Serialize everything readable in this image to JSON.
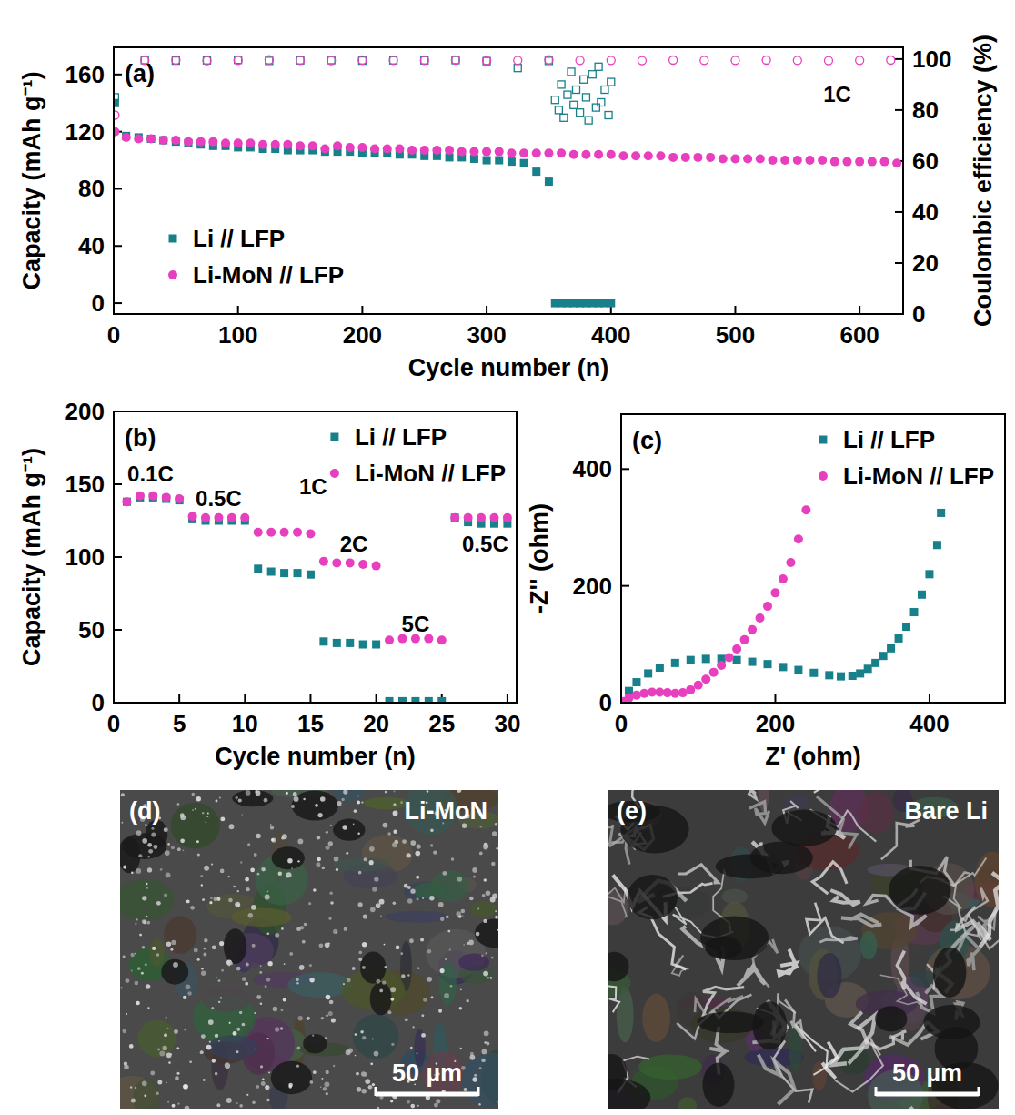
{
  "chart_data": [
    {
      "type": "scatter",
      "panel": "(a)",
      "x_label": "Cycle number (n)",
      "y_label": "Capacity (mAh g⁻¹)",
      "y2_label": "Coulombic efficiency (%)",
      "xlim": [
        0,
        635
      ],
      "xticks": [
        0,
        100,
        200,
        300,
        400,
        500,
        600
      ],
      "ylim": [
        -7.6,
        179
      ],
      "yticks": [
        0,
        40,
        80,
        120,
        160
      ],
      "y2lim": [
        0,
        104.6
      ],
      "y2ticks": [
        0,
        20,
        40,
        60,
        80,
        100
      ],
      "legend": "lower left",
      "annotations": [
        {
          "text": "1C",
          "x": 582,
          "y": 145
        }
      ],
      "series": [
        {
          "name": "Li // LFP",
          "color": "#17808a",
          "marker": "square",
          "x": [
            1,
            10,
            20,
            30,
            40,
            50,
            60,
            70,
            80,
            90,
            100,
            110,
            120,
            130,
            140,
            150,
            160,
            170,
            180,
            190,
            200,
            210,
            220,
            230,
            240,
            250,
            260,
            270,
            280,
            290,
            300,
            310,
            320,
            330,
            340,
            350,
            355,
            360,
            365,
            370,
            375,
            380,
            385,
            390,
            395,
            400
          ],
          "values": [
            140,
            117,
            116,
            115,
            114,
            113,
            112,
            111,
            110,
            110,
            109,
            109,
            108,
            108,
            107,
            107,
            107,
            106,
            106,
            106,
            105,
            105,
            105,
            104,
            104,
            103,
            103,
            102,
            102,
            101,
            100,
            100,
            99,
            98,
            92,
            85,
            0,
            0,
            0,
            0,
            0,
            0,
            0,
            0,
            0,
            0
          ]
        },
        {
          "name": "Li-MoN // LFP",
          "color": "#e83fbf",
          "marker": "circle",
          "x": [
            1,
            10,
            20,
            30,
            40,
            50,
            60,
            70,
            80,
            90,
            100,
            110,
            120,
            130,
            140,
            150,
            160,
            170,
            180,
            190,
            200,
            210,
            220,
            230,
            240,
            250,
            260,
            270,
            280,
            290,
            300,
            310,
            320,
            330,
            340,
            350,
            360,
            370,
            380,
            390,
            400,
            410,
            420,
            430,
            440,
            450,
            460,
            470,
            480,
            490,
            500,
            510,
            520,
            530,
            540,
            550,
            560,
            570,
            580,
            590,
            600,
            610,
            620,
            630
          ],
          "values": [
            120,
            116,
            115,
            115,
            114,
            114,
            113,
            113,
            113,
            112,
            112,
            112,
            111,
            111,
            111,
            110,
            110,
            108,
            110,
            109,
            109,
            108,
            108,
            108,
            107,
            107,
            107,
            107,
            106,
            106,
            106,
            106,
            105,
            105,
            105,
            105,
            105,
            104,
            104,
            104,
            104,
            103,
            103,
            103,
            103,
            102,
            102,
            102,
            102,
            101,
            101,
            101,
            101,
            100,
            100,
            100,
            100,
            100,
            99,
            99,
            99,
            99,
            99,
            98
          ]
        },
        {
          "color": "#17808a",
          "marker": "open-square",
          "axis": "y2",
          "x": [
            1,
            25,
            50,
            75,
            100,
            125,
            150,
            175,
            200,
            225,
            250,
            275,
            300,
            325,
            350,
            355,
            358,
            360,
            362,
            365,
            368,
            370,
            372,
            375,
            378,
            380,
            382,
            385,
            388,
            390,
            392,
            395,
            398,
            400
          ],
          "values": [
            85,
            99.6,
            99.4,
            99.5,
            99.7,
            99.3,
            99.5,
            99.6,
            99.4,
            99.5,
            99.5,
            99.6,
            99.2,
            96.5,
            99.3,
            84,
            80,
            90,
            77,
            86,
            95,
            82,
            88,
            79,
            92,
            85,
            76,
            94,
            81,
            97,
            83,
            88,
            78,
            91
          ]
        },
        {
          "color": "#e83fbf",
          "marker": "open-circle",
          "axis": "y2",
          "x": [
            1,
            25,
            50,
            75,
            100,
            125,
            150,
            175,
            200,
            225,
            250,
            275,
            300,
            325,
            350,
            375,
            400,
            425,
            450,
            475,
            500,
            525,
            550,
            575,
            600,
            625
          ],
          "values": [
            78,
            99.5,
            99.6,
            99.4,
            99.5,
            99.7,
            99.5,
            99.4,
            99.6,
            99.5,
            99.5,
            99.6,
            99.4,
            99.5,
            99.7,
            99.5,
            99.5,
            99.4,
            99.6,
            99.5,
            99.5,
            99.6,
            99.5,
            99.4,
            99.5,
            99.6
          ]
        }
      ]
    },
    {
      "type": "scatter",
      "panel": "(b)",
      "x_label": "Cycle number (n)",
      "y_label": "Capacity (mAh g⁻¹)",
      "xlim": [
        0,
        30.7
      ],
      "xticks": [
        0,
        5,
        10,
        15,
        20,
        25,
        30
      ],
      "ylim": [
        0,
        200
      ],
      "yticks": [
        0,
        50,
        100,
        150,
        200
      ],
      "legend": "upper right",
      "x": [
        1,
        2,
        3,
        4,
        5,
        6,
        7,
        8,
        9,
        10,
        11,
        12,
        13,
        14,
        15,
        16,
        17,
        18,
        19,
        20,
        21,
        22,
        23,
        24,
        25,
        26,
        27,
        28,
        29,
        30
      ],
      "annotations": [
        {
          "text": "0.1C",
          "x": 2.8,
          "y": 155.6
        },
        {
          "text": "0.5C",
          "x": 8,
          "y": 139
        },
        {
          "text": "1C",
          "x": 15.2,
          "y": 147
        },
        {
          "text": "2C",
          "x": 18.3,
          "y": 107.5
        },
        {
          "text": "5C",
          "x": 23,
          "y": 52.5
        },
        {
          "text": "0.5C",
          "x": 28.3,
          "y": 107.5
        }
      ],
      "series": [
        {
          "name": "Li // LFP",
          "color": "#17808a",
          "marker": "square",
          "values": [
            138,
            141,
            141,
            140,
            139,
            126,
            125,
            125,
            125,
            125,
            92,
            90,
            89,
            89,
            88,
            42,
            41,
            41,
            40,
            40,
            1,
            1,
            1,
            1,
            1,
            127,
            124,
            123,
            123,
            123
          ]
        },
        {
          "name": "Li-MoN // LFP",
          "color": "#e83fbf",
          "marker": "circle",
          "values": [
            138,
            142,
            142,
            141,
            140,
            128,
            127,
            127,
            127,
            127,
            117,
            117,
            117,
            117,
            116,
            97,
            96,
            96,
            95,
            94,
            43,
            44,
            44,
            44,
            43,
            127,
            127,
            127,
            127,
            127
          ]
        }
      ]
    },
    {
      "type": "scatter",
      "panel": "(c)",
      "x_label": "Z' (ohm)",
      "y_label": "-Z'' (ohm)",
      "xlim": [
        0,
        498
      ],
      "xticks": [
        0,
        200,
        400
      ],
      "ylim": [
        0,
        494
      ],
      "yticks": [
        0,
        200,
        400
      ],
      "legend": "upper right",
      "series": [
        {
          "name": "Li // LFP",
          "color": "#17808a",
          "marker": "square",
          "x": [
            2,
            10,
            20,
            35,
            50,
            70,
            90,
            110,
            130,
            150,
            170,
            190,
            210,
            230,
            250,
            270,
            285,
            300,
            310,
            320,
            330,
            340,
            350,
            360,
            370,
            380,
            390,
            400,
            410,
            415
          ],
          "values": [
            2,
            20,
            35,
            50,
            60,
            68,
            73,
            75,
            75,
            73,
            70,
            66,
            61,
            56,
            51,
            47,
            45,
            46,
            50,
            58,
            68,
            80,
            93,
            110,
            130,
            155,
            185,
            220,
            270,
            325
          ]
        },
        {
          "name": "Li-MoN // LFP",
          "color": "#e83fbf",
          "marker": "circle",
          "x": [
            2,
            10,
            20,
            30,
            40,
            50,
            60,
            70,
            80,
            90,
            100,
            110,
            120,
            130,
            140,
            150,
            160,
            170,
            180,
            190,
            200,
            210,
            220,
            230,
            240
          ],
          "values": [
            2,
            8,
            13,
            16,
            18,
            18,
            17,
            16,
            17,
            22,
            30,
            40,
            52,
            64,
            77,
            92,
            108,
            125,
            145,
            165,
            188,
            212,
            240,
            280,
            330
          ]
        }
      ]
    },
    {
      "type": "image",
      "panel": "(d)",
      "title": "Li-MoN",
      "annotations": [
        {
          "text": "50 µm"
        }
      ]
    },
    {
      "type": "image",
      "panel": "(e)",
      "title": "Bare Li",
      "annotations": [
        {
          "text": "50 µm"
        }
      ]
    }
  ]
}
